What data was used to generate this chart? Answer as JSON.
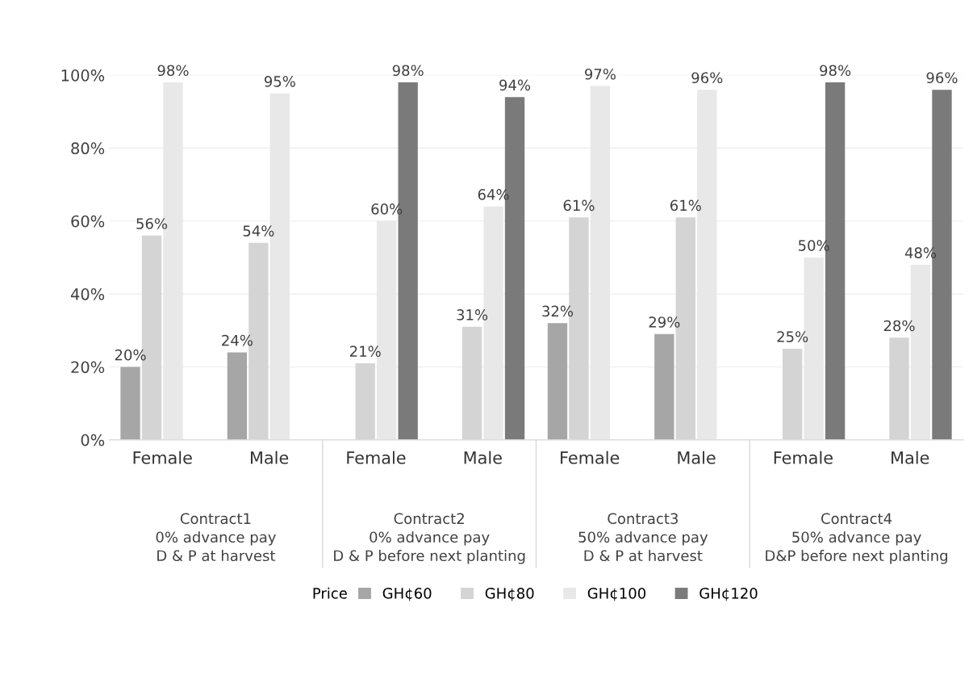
{
  "chart_data": {
    "type": "bar",
    "categories": [
      "Female",
      "Male",
      "Female",
      "Male",
      "Female",
      "Male",
      "Female",
      "Male"
    ],
    "series": [
      {
        "name": "GH¢60",
        "color": "#a6a6a6",
        "values": [
          20,
          24,
          null,
          null,
          32,
          29,
          null,
          null
        ],
        "value_labels": [
          "20%",
          "24%",
          null,
          null,
          "32%",
          "29%",
          null,
          null
        ]
      },
      {
        "name": "GH¢80",
        "color": "#d4d4d4",
        "values": [
          56,
          54,
          21,
          31,
          61,
          61,
          25,
          28
        ],
        "value_labels": [
          "56%",
          "54%",
          "21%",
          "31%",
          "61%",
          "61%",
          "25%",
          "28%"
        ]
      },
      {
        "name": "GH¢100",
        "color": "#e8e8e8",
        "values": [
          98,
          95,
          60,
          64,
          97,
          96,
          50,
          48
        ],
        "value_labels": [
          "98%",
          "95%",
          "60%",
          "64%",
          "97%",
          "96%",
          "50%",
          "48%"
        ]
      },
      {
        "name": "GH¢120",
        "color": "#7a7a7a",
        "values": [
          null,
          null,
          98,
          94,
          null,
          null,
          98,
          96
        ],
        "value_labels": [
          null,
          null,
          "98%",
          "94%",
          null,
          null,
          "98%",
          "96%"
        ]
      }
    ],
    "legend_title": "Price",
    "legend": "bottom",
    "grid": "y",
    "ylim": [
      0,
      100
    ],
    "yticks": [
      {
        "value": 0,
        "label": "0%"
      },
      {
        "value": 20,
        "label": "20%"
      },
      {
        "value": 40,
        "label": "40%"
      },
      {
        "value": 60,
        "label": "60%"
      },
      {
        "value": 80,
        "label": "80%"
      },
      {
        "value": 100,
        "label": "100%"
      }
    ],
    "annotations": [
      "Contract1\n0% advance pay\nD & P at harvest",
      "Contract2\n0% advance pay\nD & P before next planting",
      "Contract3\n50% advance pay\nD & P at harvest",
      "Contract4\n50% advance pay\nD&P before next planting"
    ]
  }
}
